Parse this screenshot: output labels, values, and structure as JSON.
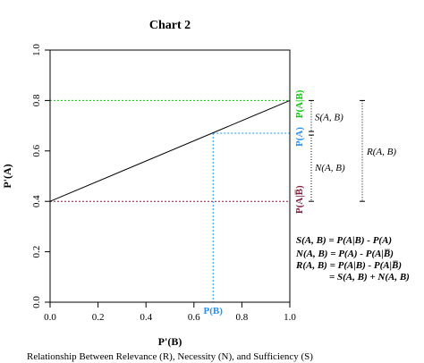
{
  "chart_data": {
    "type": "line",
    "title": "Chart 2",
    "xlabel": "P'(B)",
    "ylabel": "P'(A)",
    "caption": "Relationship Between Relevance (R), Necessity (N), and Sufficiency (S)",
    "xlim": [
      0,
      1
    ],
    "ylim": [
      0,
      1
    ],
    "x_ticks": [
      "0.0",
      "0.2",
      "0.4",
      "0.6",
      "0.8",
      "1.0"
    ],
    "y_ticks": [
      "0.0",
      "0.2",
      "0.4",
      "0.6",
      "0.8",
      "1.0"
    ],
    "grid": false,
    "series": [
      {
        "x": [
          0,
          1
        ],
        "y": [
          0.4,
          0.8
        ],
        "color": "#000000"
      }
    ],
    "reference_lines": {
      "p_a_given_b": {
        "y": 0.8,
        "color": "#00cc00",
        "label": "P(A|B)"
      },
      "p_a_given_not_b": {
        "y": 0.4,
        "color": "#8b1a3a",
        "label": "P(A|B̅)"
      },
      "p_a": {
        "y": 0.67,
        "color": "#1e90ff",
        "label": "P(A)"
      },
      "p_b": {
        "x": 0.68,
        "color": "#1e90ff",
        "label": "P(B)"
      }
    },
    "brackets": {
      "s": "S(A, B)",
      "n": "N(A, B)",
      "r": "R(A, B)"
    },
    "formulas": [
      "S(A, B) = P(A|B) - P(A)",
      "N(A, B) = P(A) - P(A|B̅)",
      "R(A, B) = P(A|B) - P(A|B̅)",
      "= S(A, B) + N(A, B)"
    ]
  }
}
